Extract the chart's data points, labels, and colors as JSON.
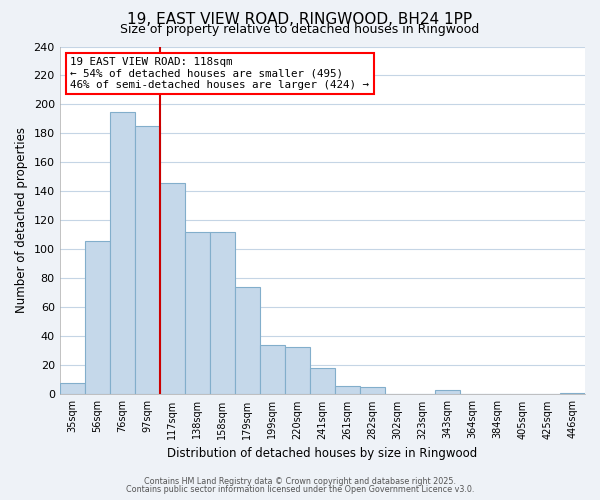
{
  "title": "19, EAST VIEW ROAD, RINGWOOD, BH24 1PP",
  "subtitle": "Size of property relative to detached houses in Ringwood",
  "xlabel": "Distribution of detached houses by size in Ringwood",
  "ylabel": "Number of detached properties",
  "bar_labels": [
    "35sqm",
    "56sqm",
    "76sqm",
    "97sqm",
    "117sqm",
    "138sqm",
    "158sqm",
    "179sqm",
    "199sqm",
    "220sqm",
    "241sqm",
    "261sqm",
    "282sqm",
    "302sqm",
    "323sqm",
    "343sqm",
    "364sqm",
    "384sqm",
    "405sqm",
    "425sqm",
    "446sqm"
  ],
  "bar_heights": [
    8,
    106,
    195,
    185,
    146,
    112,
    112,
    74,
    34,
    33,
    18,
    6,
    5,
    0,
    0,
    3,
    0,
    0,
    0,
    0,
    1
  ],
  "bar_color": "#c5d8ea",
  "bar_edge_color": "#82aecb",
  "ylim": [
    0,
    240
  ],
  "yticks": [
    0,
    20,
    40,
    60,
    80,
    100,
    120,
    140,
    160,
    180,
    200,
    220,
    240
  ],
  "annotation_line1": "19 EAST VIEW ROAD: 118sqm",
  "annotation_line2": "← 54% of detached houses are smaller (495)",
  "annotation_line3": "46% of semi-detached houses are larger (424) →",
  "property_line_x": 3.5,
  "property_line_color": "#cc0000",
  "footer_line1": "Contains HM Land Registry data © Crown copyright and database right 2025.",
  "footer_line2": "Contains public sector information licensed under the Open Government Licence v3.0.",
  "bg_color": "#eef2f7",
  "plot_bg_color": "#ffffff",
  "grid_color": "#c5d5e5"
}
